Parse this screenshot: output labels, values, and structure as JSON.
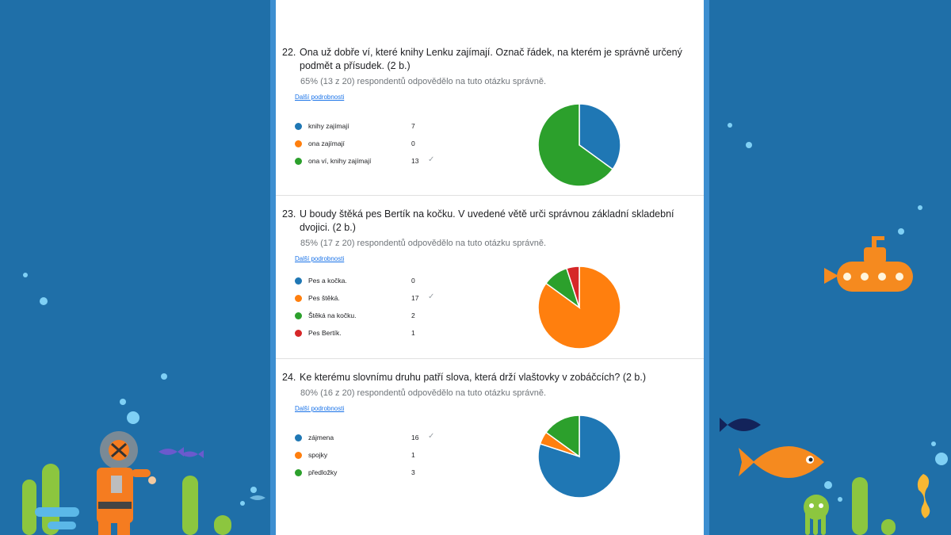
{
  "colors": {
    "blue": "#1f77b4",
    "orange": "#ff7f0e",
    "green": "#2ca02c",
    "red": "#d62728",
    "background": "#1f6fa8",
    "accent": "#1a73e8"
  },
  "icons": {
    "correct": "✓"
  },
  "questions": [
    {
      "number": "22.",
      "text": "Ona už dobře ví, které knihy Lenku zajímají. Označ řádek, na kterém je správně určený podmět a přísudek. (2 b.)",
      "stats": "65% (13 z 20) respondentů odpovědělo na tuto otázku správně.",
      "more": "Další podrobnosti",
      "options": [
        {
          "label": "knihy zajímají",
          "count": "7",
          "color": "#1f77b4",
          "correct": false
        },
        {
          "label": "ona zajímají",
          "count": "0",
          "color": "#ff7f0e",
          "correct": false
        },
        {
          "label": "ona ví, knihy zajímají",
          "count": "13",
          "color": "#2ca02c",
          "correct": true
        }
      ]
    },
    {
      "number": "23.",
      "text": "U boudy štěká pes Bertík na kočku. V uvedené větě urči správnou základní skladební dvojici. (2 b.)",
      "stats": "85% (17 z 20) respondentů odpovědělo na tuto otázku správně.",
      "more": "Další podrobnosti",
      "options": [
        {
          "label": "Pes a kočka.",
          "count": "0",
          "color": "#1f77b4",
          "correct": false
        },
        {
          "label": "Pes štěká.",
          "count": "17",
          "color": "#ff7f0e",
          "correct": true
        },
        {
          "label": "Štěká na kočku.",
          "count": "2",
          "color": "#2ca02c",
          "correct": false
        },
        {
          "label": "Pes Bertík.",
          "count": "1",
          "color": "#d62728",
          "correct": false
        }
      ]
    },
    {
      "number": "24.",
      "text": "Ke kterému slovnímu druhu patří slova, která drží vlaštovky v zobáčcích? (2 b.)",
      "stats": "80% (16 z 20) respondentů odpovědělo na tuto otázku správně.",
      "more": "Další podrobnosti",
      "options": [
        {
          "label": "zájmena",
          "count": "16",
          "color": "#1f77b4",
          "correct": true
        },
        {
          "label": "spojky",
          "count": "1",
          "color": "#ff7f0e",
          "correct": false
        },
        {
          "label": "předložky",
          "count": "3",
          "color": "#2ca02c",
          "correct": false
        }
      ]
    }
  ]
}
